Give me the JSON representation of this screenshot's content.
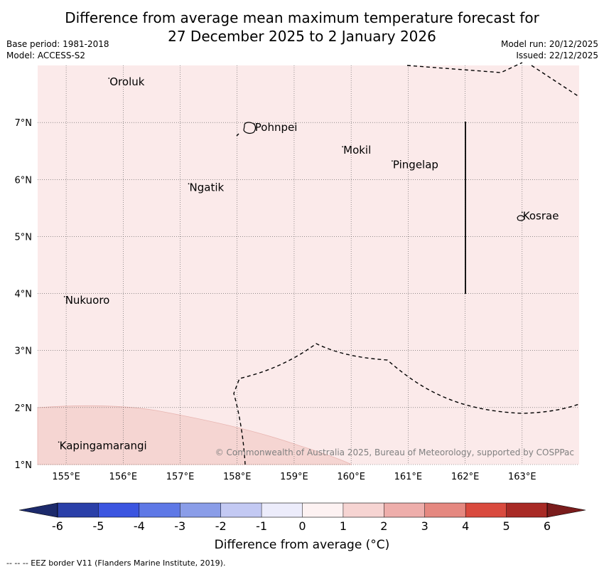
{
  "title_line1": "Difference from average mean maximum temperature forecast for",
  "title_line2": "27 December 2025 to 2 January 2026",
  "base_period": "Base period: 1981-2018",
  "model": "Model: ACCESS-S2",
  "model_run": "Model run: 20/12/2025",
  "issued": "Issued: 22/12/2025",
  "copyright": "© Commonwealth of Australia 2025, Bureau of Meteorology, supported by COSPPac",
  "footer": "--  --  -- EEZ border V11 (Flanders Marine Institute, 2019).",
  "map": {
    "lon_range": [
      154.5,
      164.0
    ],
    "lat_range": [
      1.0,
      8.0
    ],
    "lon_ticks": [
      {
        "v": 155,
        "label": "155°E"
      },
      {
        "v": 156,
        "label": "156°E"
      },
      {
        "v": 157,
        "label": "157°E"
      },
      {
        "v": 158,
        "label": "158°E"
      },
      {
        "v": 159,
        "label": "159°E"
      },
      {
        "v": 160,
        "label": "160°E"
      },
      {
        "v": 161,
        "label": "161°E"
      },
      {
        "v": 162,
        "label": "162°E"
      },
      {
        "v": 163,
        "label": "163°E"
      }
    ],
    "lat_ticks": [
      {
        "v": 1,
        "label": "1°N"
      },
      {
        "v": 2,
        "label": "2°N"
      },
      {
        "v": 3,
        "label": "3°N"
      },
      {
        "v": 4,
        "label": "4°N"
      },
      {
        "v": 5,
        "label": "5°N"
      },
      {
        "v": 6,
        "label": "6°N"
      },
      {
        "v": 7,
        "label": "7°N"
      }
    ],
    "background_category": "0 to 1 °C",
    "places": [
      {
        "name": "Oroluk",
        "lon": 155.75,
        "lat": 7.65
      },
      {
        "name": "Pohnpei",
        "lon": 158.3,
        "lat": 6.85
      },
      {
        "name": "Mokil",
        "lon": 159.85,
        "lat": 6.45
      },
      {
        "name": "Pingelap",
        "lon": 160.72,
        "lat": 6.2
      },
      {
        "name": "Ngatik",
        "lon": 157.15,
        "lat": 5.8
      },
      {
        "name": "Kosrae",
        "lon": 163.0,
        "lat": 5.3
      },
      {
        "name": "Nukuoro",
        "lon": 154.97,
        "lat": 3.82
      },
      {
        "name": "Kapingamarangi",
        "lon": 154.87,
        "lat": 1.27
      }
    ]
  },
  "colorbar": {
    "label": "Difference from average (°C)",
    "ticks": [
      "-6",
      "-5",
      "-4",
      "-3",
      "-2",
      "-1",
      "0",
      "1",
      "2",
      "3",
      "4",
      "5",
      "6"
    ],
    "low_extend_color": "#1c2a6b",
    "high_extend_color": "#7a1c1c",
    "colors": [
      "#2a3fa8",
      "#3b55e0",
      "#5e78e6",
      "#8a9de8",
      "#c3c9f3",
      "#ececfb",
      "#fdf2f2",
      "#f6d4d2",
      "#eeaeab",
      "#e58880",
      "#d94a3e",
      "#a82a25"
    ]
  }
}
